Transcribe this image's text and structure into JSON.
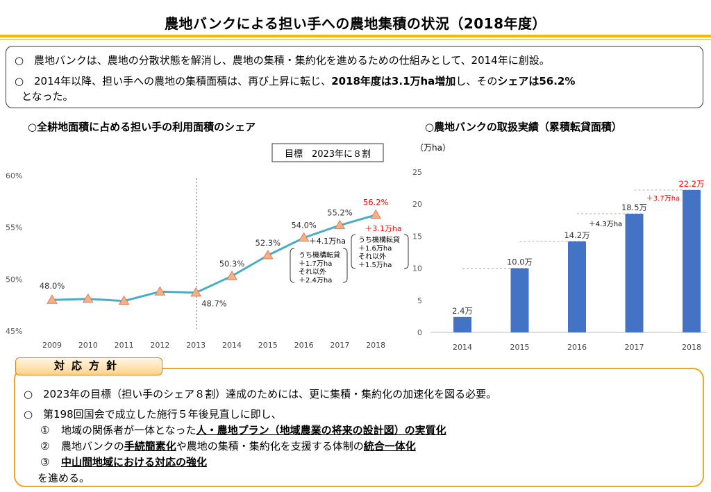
{
  "title": "農地バンクによる担い手への農地集積の状況（2018年度）",
  "summary": {
    "bullet": "○",
    "line1": "農地バンクは、農地の分散状態を解消し、農地の集積・集約化を進めるための仕組みとして、2014年に創設。",
    "line2_part1": "2014年以降、担い手への農地の集積面積は、再び上昇に転じ、",
    "line2_bold1": "2018年度は3.1万ha増加",
    "line2_part2": "し、その",
    "line2_bold2": "シェアは56.2%",
    "line3": "となった。"
  },
  "left_chart_title": "○全耕地面積に占める担い手の利用面積のシェア",
  "right_chart_title": "○農地バンクの取扱実績（累積転貸面積）",
  "chart_data": [
    {
      "type": "line",
      "title": "○全耕地面積に占める担い手の利用面積のシェア",
      "x": [
        "2009",
        "2010",
        "2011",
        "2012",
        "2013",
        "2014",
        "2015",
        "2016",
        "2017",
        "2018"
      ],
      "values": [
        48.0,
        48.1,
        47.9,
        48.8,
        48.7,
        50.3,
        52.3,
        54.0,
        55.2,
        56.2
      ],
      "point_labels": [
        "48.0%",
        "",
        "",
        "",
        "48.7%",
        "50.3%",
        "52.3%",
        "54.0%",
        "55.2%",
        "56.2%"
      ],
      "ylim": [
        45,
        60
      ],
      "yticks": [
        "45%",
        "50%",
        "55%",
        "60%"
      ],
      "target_label": "目標　2023年に８割",
      "annotations": {
        "inc_2017": "＋4.1万ha",
        "inc_2018": "＋3.1万ha",
        "box_2017": [
          "うち機構転貸",
          "＋1.7万ha",
          "それ以外",
          "＋2.4万ha"
        ],
        "box_2018": [
          "うち機構転貸",
          "＋1.6万ha",
          "それ以外",
          "＋1.5万ha"
        ]
      },
      "colors": {
        "line": "#4bacc6",
        "marker": "#f4b183",
        "highlight": "#ff0000"
      }
    },
    {
      "type": "bar",
      "title": "○農地バンクの取扱実績（累積転貸面積）",
      "ylabel": "（万ha）",
      "categories": [
        "2014",
        "2015",
        "2016",
        "2017",
        "2018"
      ],
      "values": [
        2.4,
        10.0,
        14.2,
        18.5,
        22.2
      ],
      "labels": [
        "2.4万",
        "10.0万",
        "14.2万",
        "18.5万",
        "22.2万"
      ],
      "ylim": [
        0,
        25
      ],
      "yticks": [
        "0",
        "5",
        "10",
        "15",
        "20",
        "25"
      ],
      "increments": [
        "＋4.3万ha",
        "＋3.7万ha"
      ],
      "colors": {
        "bar": "#4472c4",
        "highlight": "#ff0000"
      }
    }
  ],
  "policy": {
    "badge": "対応方針",
    "bullet": "○",
    "line1": "2023年の目標（担い手のシェア８割）達成のためには、更に集積・集約化の加速化を図る必要。",
    "line2": "第198回国会で成立した施行５年後見直しに即し、",
    "item1_num": "①",
    "item1_pre": "地域の関係者が一体となった",
    "item1_bold": "人・農地プラン（地域農業の将来の設計図）の実質化",
    "item2_num": "②",
    "item2_pre": "農地バンクの",
    "item2_bold1": "手続簡素化",
    "item2_mid": "や農地の集積・集約化を支援する体制の",
    "item2_bold2": "統合一体化",
    "item3_num": "③",
    "item3_bold": "中山間地域における対応の強化",
    "closing": "を進める。"
  }
}
